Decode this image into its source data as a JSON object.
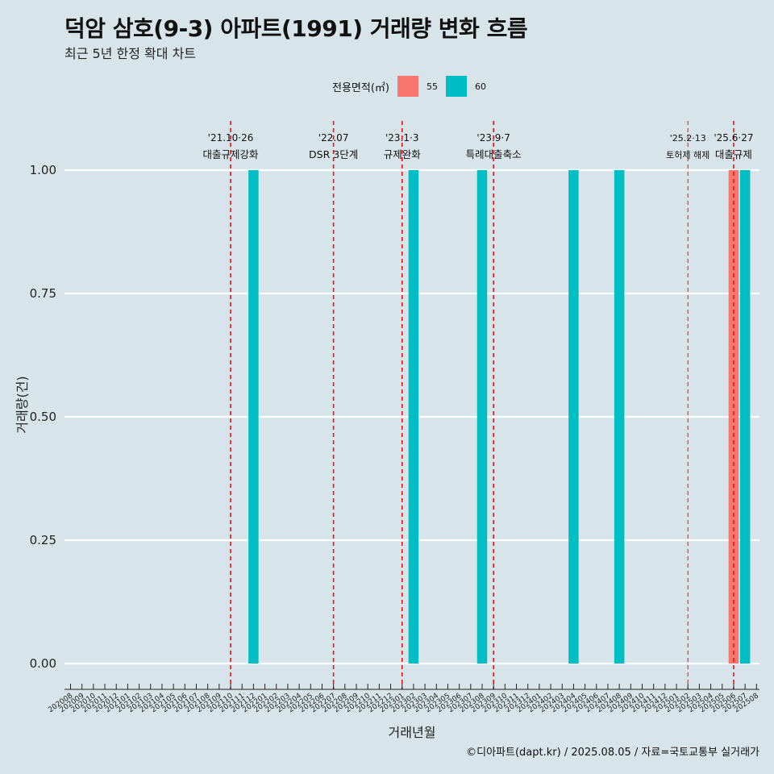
{
  "header": {
    "title": "덕암 삼호(9-3) 아파트(1991) 거래량 변화 흐름",
    "subtitle": "최근 5년 한정 확대 차트"
  },
  "legend": {
    "title": "전용면적(㎡)",
    "items": [
      {
        "label": "55",
        "color": "#f8766d"
      },
      {
        "label": "60",
        "color": "#00bfc4"
      }
    ]
  },
  "caption": "©디아파트(dapt.kr) / 2025.08.05 / 자료=국토교통부 실거래가",
  "chart_data": {
    "type": "bar",
    "xlabel": "거래년월",
    "ylabel": "거래량(건)",
    "ylim": [
      0,
      1
    ],
    "yticks": [
      "0.00",
      "0.25",
      "0.50",
      "0.75",
      "1.00"
    ],
    "categories": [
      "202008",
      "202009",
      "202010",
      "202011",
      "202012",
      "202101",
      "202102",
      "202103",
      "202104",
      "202105",
      "202106",
      "202107",
      "202108",
      "202109",
      "202110",
      "202111",
      "202112",
      "202201",
      "202202",
      "202203",
      "202204",
      "202205",
      "202206",
      "202207",
      "202208",
      "202209",
      "202210",
      "202211",
      "202212",
      "202301",
      "202302",
      "202303",
      "202304",
      "202305",
      "202306",
      "202307",
      "202308",
      "202309",
      "202310",
      "202311",
      "202312",
      "202401",
      "202402",
      "202403",
      "202404",
      "202405",
      "202406",
      "202407",
      "202408",
      "202409",
      "202410",
      "202411",
      "202412",
      "202501",
      "202502",
      "202503",
      "202504",
      "202505",
      "202506",
      "202507",
      "202508"
    ],
    "series": [
      {
        "name": "55",
        "color": "#f8766d",
        "points": [
          {
            "x": "202506",
            "y": 1
          }
        ]
      },
      {
        "name": "60",
        "color": "#00bfc4",
        "points": [
          {
            "x": "202112",
            "y": 1
          },
          {
            "x": "202302",
            "y": 1
          },
          {
            "x": "202308",
            "y": 1
          },
          {
            "x": "202404",
            "y": 1
          },
          {
            "x": "202408",
            "y": 1
          },
          {
            "x": "202507",
            "y": 1
          }
        ]
      }
    ],
    "events": [
      {
        "x": "202110",
        "date": "'21.10·26",
        "label": "대출규제강화"
      },
      {
        "x": "202207",
        "date": "'22.07",
        "label": "DSR 3단계"
      },
      {
        "x": "202301",
        "date": "'23.1·3",
        "label": "규제완화"
      },
      {
        "x": "202309",
        "date": "'23.9·7",
        "label": "특례대출축소"
      },
      {
        "x": "202502",
        "date": "'25.2·13",
        "label": "토허제 해제"
      },
      {
        "x": "202506",
        "date": "'25.6·27",
        "label": "대출규제"
      }
    ],
    "grid": true,
    "legend_position": "top"
  }
}
